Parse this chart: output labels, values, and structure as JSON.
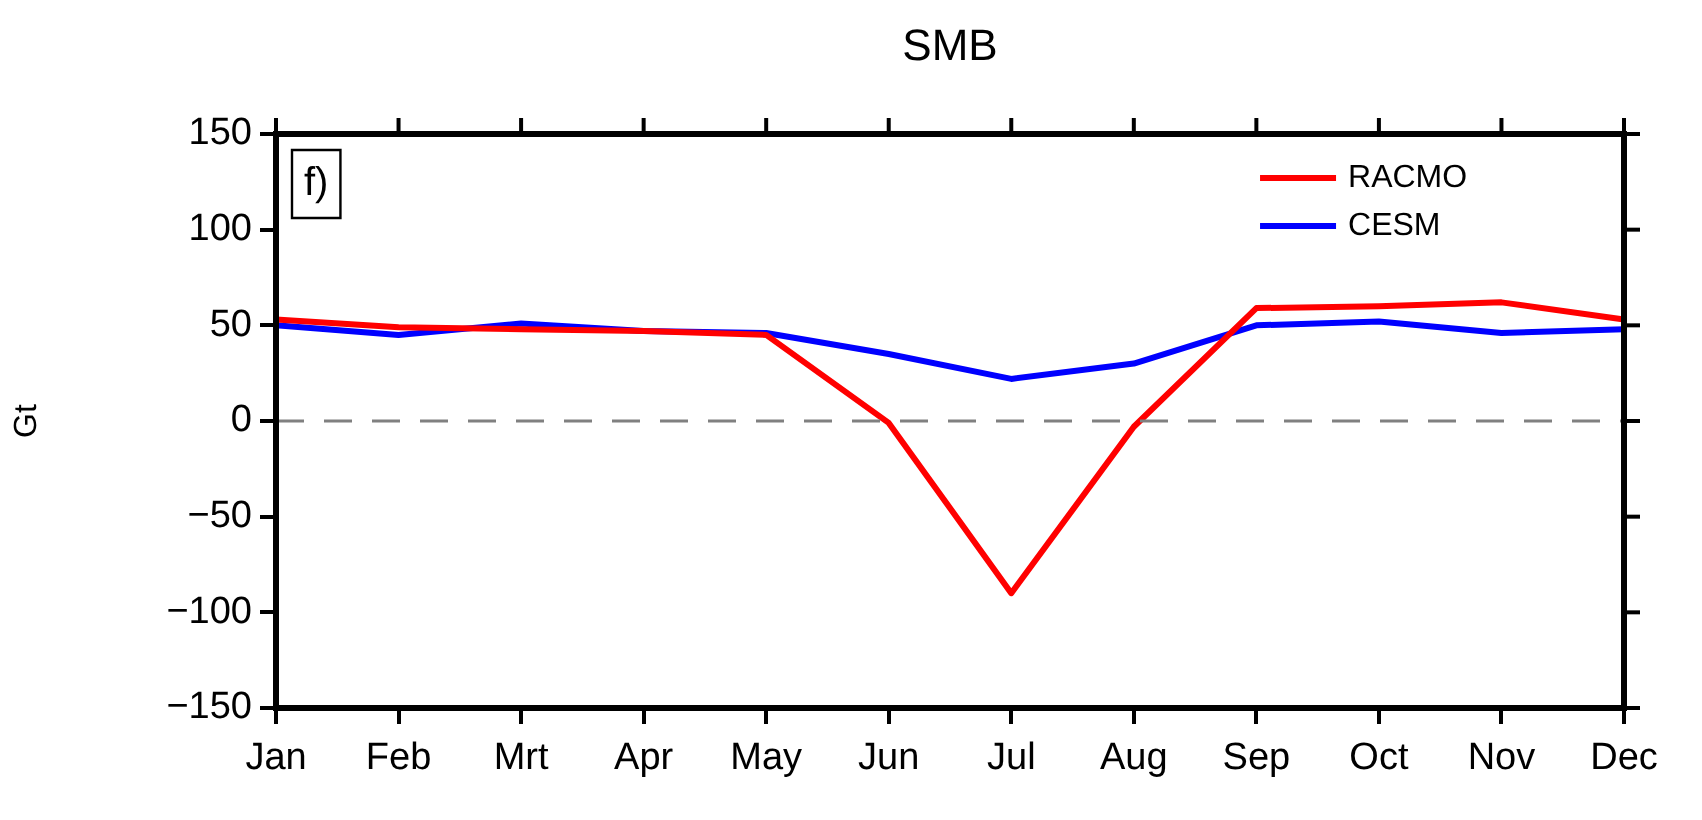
{
  "chart_data": {
    "type": "line",
    "title": "SMB",
    "ylabel": "Gt",
    "categories": [
      "Jan",
      "Feb",
      "Mrt",
      "Apr",
      "May",
      "Jun",
      "Jul",
      "Aug",
      "Sep",
      "Oct",
      "Nov",
      "Dec"
    ],
    "series": [
      {
        "name": "RACMO",
        "color": "#ff0000",
        "values": [
          53,
          49,
          48,
          47,
          45,
          -1,
          -90,
          -3,
          59,
          60,
          62,
          53
        ]
      },
      {
        "name": "CESM",
        "color": "#0000ff",
        "values": [
          50,
          45,
          51,
          47,
          46,
          35,
          22,
          30,
          50,
          52,
          46,
          48
        ]
      }
    ],
    "ylim": [
      -150,
      150
    ],
    "yticks": [
      -150,
      -100,
      -50,
      0,
      50,
      100,
      150
    ],
    "ref_lines": [
      {
        "axis": "y",
        "value": 0,
        "color": "#808080",
        "line_style": "dashed"
      }
    ],
    "annotations": [
      "f)"
    ],
    "legend": "top right",
    "marker": "none",
    "line_style": "solid",
    "grid": false
  }
}
